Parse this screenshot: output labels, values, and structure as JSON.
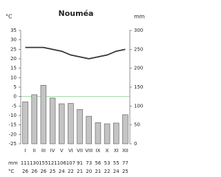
{
  "chart_data": {
    "type": "climograph",
    "title": "Nouméa",
    "y_label": "°C",
    "y2_label": "mm",
    "categories": [
      "I",
      "II",
      "III",
      "IV",
      "V",
      "VI",
      "VII",
      "VIII",
      "IX",
      "X",
      "XI",
      "XII"
    ],
    "series": [
      {
        "name": "mm",
        "type": "bar",
        "axis": "y2",
        "color": "#c4c4c4",
        "values": [
          111,
          130,
          155,
          121,
          106,
          107,
          91,
          73,
          56,
          53,
          55,
          77
        ]
      },
      {
        "name": "°C",
        "type": "line",
        "axis": "y",
        "color": "#333333",
        "values": [
          26,
          26,
          26,
          25,
          24,
          22,
          21,
          20,
          21,
          22,
          24,
          25
        ]
      }
    ],
    "ylim": [
      -25,
      35
    ],
    "yticks": [
      -25,
      -20,
      -15,
      -10,
      -5,
      0,
      5,
      10,
      15,
      20,
      25,
      30,
      35
    ],
    "y2lim": [
      0,
      300
    ],
    "y2ticks": [
      0,
      50,
      100,
      150,
      200,
      250,
      300
    ],
    "zero_line_color": "#8fd18f"
  }
}
